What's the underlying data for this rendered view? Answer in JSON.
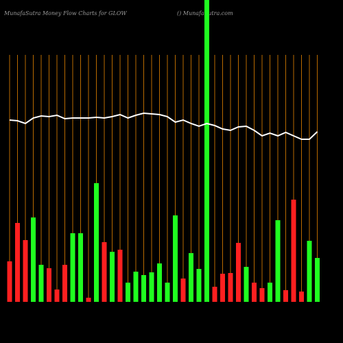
{
  "chart_data": {
    "type": "bar",
    "title": "MunafaSutra  Money Flow  Charts for GLOW",
    "subtitle": "() MunafaSutra.com",
    "ylim": [
      0,
      440
    ],
    "series": [
      {
        "name": null,
        "values": [
          59,
          115,
          90,
          123,
          54,
          49,
          18,
          54,
          100,
          100,
          6,
          173,
          87,
          73,
          76,
          28,
          44,
          39,
          43,
          56,
          28,
          126,
          34,
          71,
          48,
          440,
          22,
          41,
          42,
          86,
          51,
          28,
          20,
          28,
          119,
          17,
          149,
          15,
          89,
          64
        ],
        "colors": [
          "#ff2020",
          "#ff2020",
          "#ff2020",
          "#20ff20",
          "#20ff20",
          "#ff2020",
          "#ff2020",
          "#ff2020",
          "#20ff20",
          "#20ff20",
          "#ff2020",
          "#20ff20",
          "#ff2020",
          "#20ff20",
          "#ff2020",
          "#20ff20",
          "#20ff20",
          "#20ff20",
          "#20ff20",
          "#20ff20",
          "#20ff20",
          "#20ff20",
          "#ff2020",
          "#20ff20",
          "#20ff20",
          "#20ff20",
          "#ff2020",
          "#ff2020",
          "#ff2020",
          "#ff2020",
          "#20ff20",
          "#ff2020",
          "#ff2020",
          "#20ff20",
          "#20ff20",
          "#ff2020",
          "#ff2020",
          "#ff2020",
          "#20ff20",
          "#20ff20"
        ]
      },
      {
        "type": "line",
        "color": "#ffffff",
        "values": [
          265,
          264,
          260,
          268,
          271,
          270,
          272,
          267,
          268,
          268,
          268,
          269,
          268,
          270,
          273,
          268,
          272,
          275,
          274,
          273,
          270,
          262,
          265,
          260,
          256,
          260,
          257,
          252,
          250,
          255,
          256,
          250,
          242,
          246,
          242,
          247,
          242,
          237,
          237,
          248
        ]
      }
    ],
    "gridline_color": "#b86a00"
  }
}
